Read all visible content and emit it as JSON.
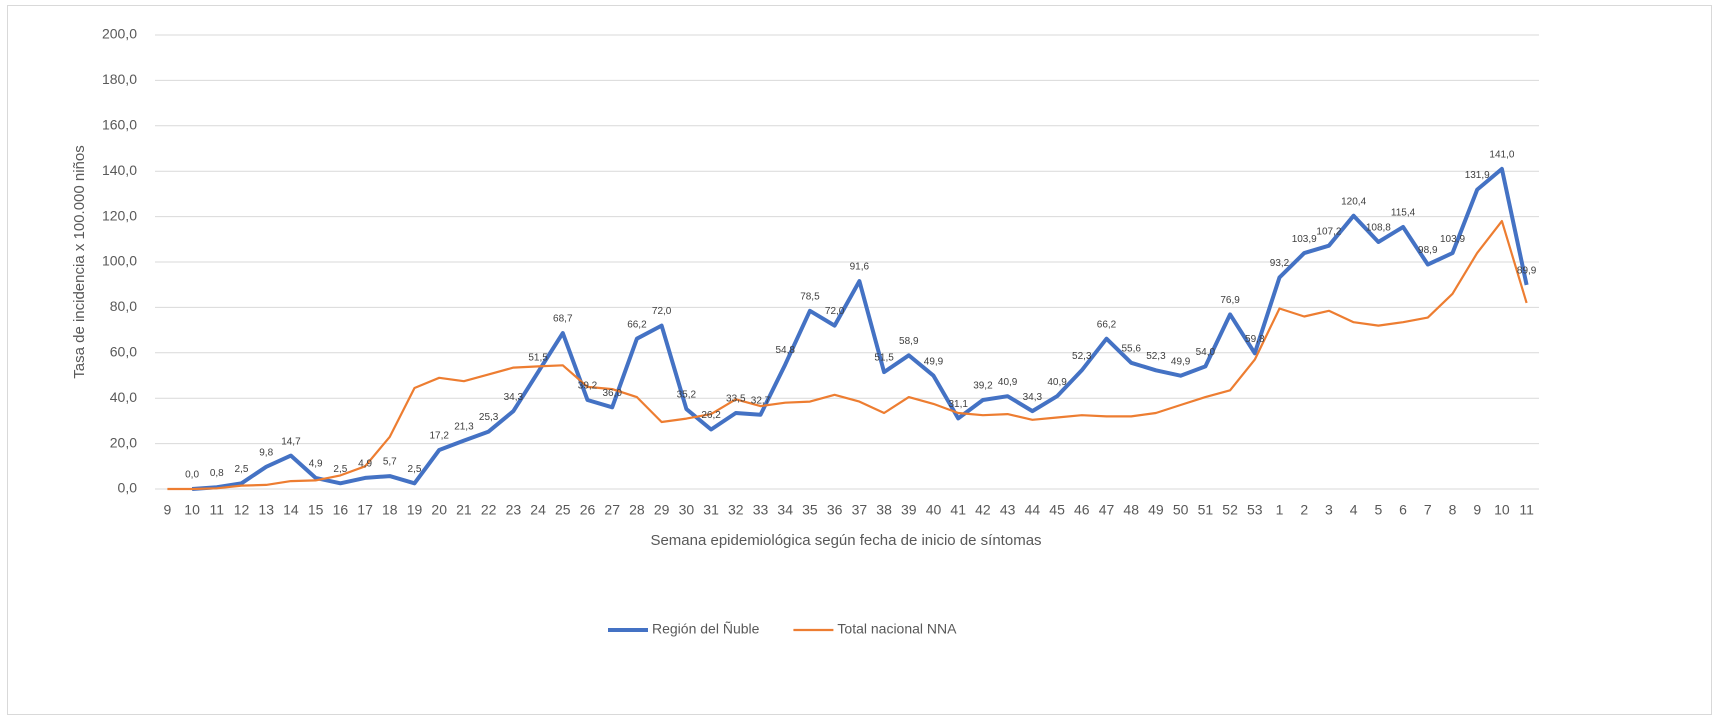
{
  "chart_data": {
    "type": "line",
    "x_label": "Semana epidemiológica según fecha de inicio de síntomas",
    "y_label": "Tasa de incidencia x 100.000 niños",
    "categories": [
      "9",
      "10",
      "11",
      "12",
      "13",
      "14",
      "15",
      "16",
      "17",
      "18",
      "19",
      "20",
      "21",
      "22",
      "23",
      "24",
      "25",
      "26",
      "27",
      "28",
      "29",
      "30",
      "31",
      "32",
      "33",
      "34",
      "35",
      "36",
      "37",
      "38",
      "39",
      "40",
      "41",
      "42",
      "43",
      "44",
      "45",
      "46",
      "47",
      "48",
      "49",
      "50",
      "51",
      "52",
      "53",
      "1",
      "2",
      "3",
      "4",
      "5",
      "6",
      "7",
      "8",
      "9",
      "10",
      "11"
    ],
    "series": [
      {
        "name": "Región del Ñuble",
        "color": "#4472c4",
        "values": [
          null,
          0.0,
          0.8,
          2.5,
          9.8,
          14.7,
          4.9,
          2.5,
          4.9,
          5.7,
          2.5,
          17.2,
          21.3,
          25.3,
          34.3,
          51.5,
          68.7,
          39.2,
          36.0,
          66.2,
          72.0,
          35.2,
          26.2,
          33.5,
          32.7,
          54.8,
          78.5,
          72.0,
          91.6,
          51.5,
          58.9,
          49.9,
          31.1,
          39.2,
          40.9,
          34.3,
          40.9,
          52.3,
          66.2,
          55.6,
          52.3,
          49.9,
          54.0,
          76.9,
          59.8,
          93.2,
          103.9,
          107.2,
          120.4,
          108.8,
          115.4,
          98.9,
          103.9,
          131.9,
          141.0,
          89.9
        ],
        "value_labels": [
          null,
          "0,0",
          "0,8",
          "2,5",
          "9,8",
          "14,7",
          "4,9",
          "2,5",
          "4,9",
          "5,7",
          "2,5",
          "17,2",
          "21,3",
          "25,3",
          "34,3",
          "51,5",
          "68,7",
          "39,2",
          "36,0",
          "66,2",
          "72,0",
          "35,2",
          "26,2",
          "33,5",
          "32,7",
          "54,8",
          "78,5",
          "72,0",
          "91,6",
          "51,5",
          "58,9",
          "49,9",
          "31,1",
          "39,2",
          "40,9",
          "34,3",
          "40,9",
          "52,3",
          "66,2",
          "55,6",
          "52,3",
          "49,9",
          "54,0",
          "76,9",
          "59,8",
          "93,2",
          "103,9",
          "107,2",
          "120,4",
          "108,8",
          "115,4",
          "98,9",
          "103,9",
          "131,9",
          "141,0",
          "89,9"
        ]
      },
      {
        "name": "Total nacional NNA",
        "color": "#ed7d31",
        "values": [
          0,
          0,
          0.3,
          1.5,
          1.8,
          3.5,
          3.8,
          6,
          10,
          23,
          44.5,
          49,
          47.5,
          50.5,
          53.5,
          54,
          54.5,
          45,
          44,
          40.5,
          29.5,
          31,
          33,
          39.5,
          36.5,
          38,
          38.5,
          41.5,
          38.5,
          33.5,
          40.5,
          37.5,
          33.5,
          32.5,
          33,
          30.5,
          31.5,
          32.5,
          32,
          32,
          33.5,
          37,
          40.5,
          43.5,
          57,
          79.5,
          76,
          78.5,
          73.5,
          72,
          73.5,
          75.5,
          86,
          104,
          118,
          82
        ]
      }
    ],
    "ylim": [
      0,
      200
    ],
    "yticks": [
      {
        "value": 0,
        "label": "0,0"
      },
      {
        "value": 20,
        "label": "20,0"
      },
      {
        "value": 40,
        "label": "40,0"
      },
      {
        "value": 60,
        "label": "60,0"
      },
      {
        "value": 80,
        "label": "80,0"
      },
      {
        "value": 100,
        "label": "100,0"
      },
      {
        "value": 120,
        "label": "120,0"
      },
      {
        "value": 140,
        "label": "140,0"
      },
      {
        "value": 160,
        "label": "160,0"
      },
      {
        "value": 180,
        "label": "180,0"
      },
      {
        "value": 200,
        "label": "200,0"
      }
    ],
    "grid": true,
    "legend": "bottom"
  }
}
